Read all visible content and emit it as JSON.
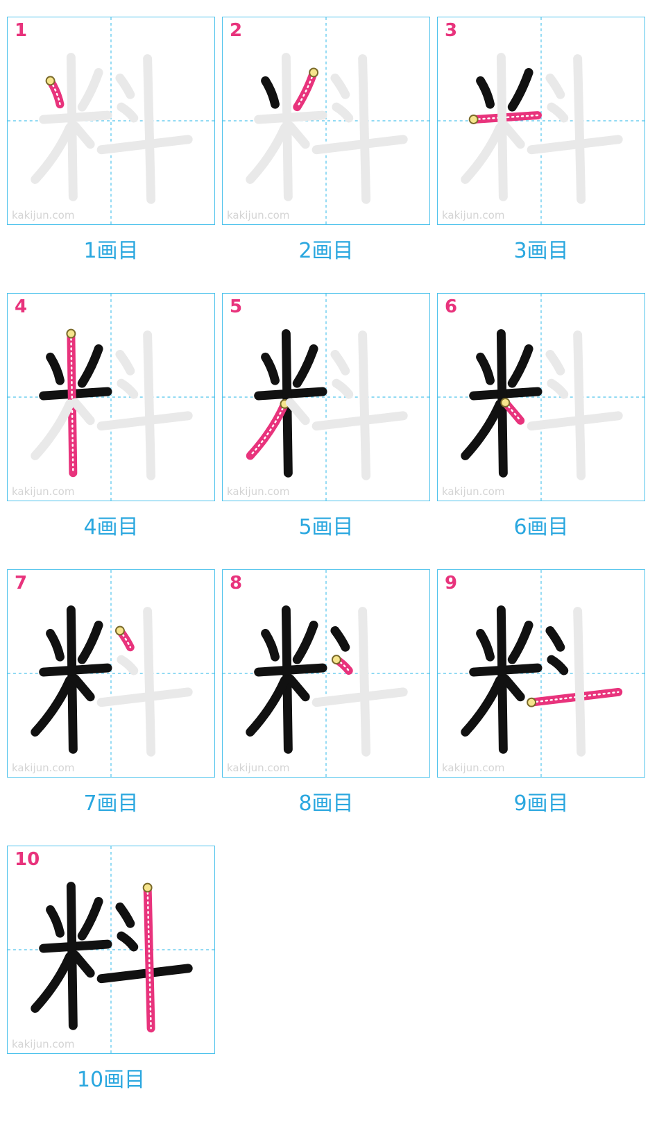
{
  "watermark": "kakijun.com",
  "colors": {
    "accent": "#e8337c",
    "grid": "#4fc3ec",
    "caption": "#2aa7df",
    "ghost": "#e9e9e9",
    "done": "#111111"
  },
  "panels": [
    {
      "number": "1",
      "caption": "1画目"
    },
    {
      "number": "2",
      "caption": "2画目"
    },
    {
      "number": "3",
      "caption": "3画目"
    },
    {
      "number": "4",
      "caption": "4画目"
    },
    {
      "number": "5",
      "caption": "5画目"
    },
    {
      "number": "6",
      "caption": "6画目"
    },
    {
      "number": "7",
      "caption": "7画目"
    },
    {
      "number": "8",
      "caption": "8画目"
    },
    {
      "number": "9",
      "caption": "9画目"
    },
    {
      "number": "10",
      "caption": "10画目"
    }
  ]
}
